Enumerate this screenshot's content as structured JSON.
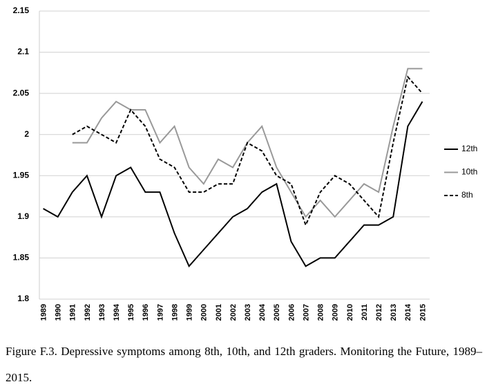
{
  "chart_data": {
    "type": "line",
    "caption": "Figure F.3. Depressive symptoms among 8th, 10th, and 12th graders. Monitoring the Future, 1989–2015.",
    "categories": [
      "1989",
      "1990",
      "1991",
      "1992",
      "1993",
      "1994",
      "1995",
      "1996",
      "1997",
      "1998",
      "1999",
      "2000",
      "2001",
      "2002",
      "2003",
      "2004",
      "2005",
      "2006",
      "2007",
      "2008",
      "2009",
      "2010",
      "2011",
      "2012",
      "2013",
      "2014",
      "2015"
    ],
    "series": [
      {
        "name": "12th",
        "color": "#000000",
        "dashed": false,
        "values": [
          1.91,
          1.9,
          1.93,
          1.95,
          1.9,
          1.95,
          1.96,
          1.93,
          1.93,
          1.88,
          1.84,
          1.86,
          1.88,
          1.9,
          1.91,
          1.93,
          1.94,
          1.87,
          1.84,
          1.85,
          1.85,
          1.87,
          1.89,
          1.89,
          1.9,
          2.01,
          2.04
        ]
      },
      {
        "name": "10th",
        "color": "#999999",
        "dashed": false,
        "values": [
          null,
          null,
          1.99,
          1.99,
          2.02,
          2.04,
          2.03,
          2.03,
          1.99,
          2.01,
          1.96,
          1.94,
          1.97,
          1.96,
          1.99,
          2.01,
          1.96,
          1.93,
          1.9,
          1.92,
          1.9,
          1.92,
          1.94,
          1.93,
          2.01,
          2.08,
          2.08
        ]
      },
      {
        "name": "8th",
        "color": "#000000",
        "dashed": true,
        "values": [
          null,
          null,
          2.0,
          2.01,
          2.0,
          1.99,
          2.03,
          2.01,
          1.97,
          1.96,
          1.93,
          1.93,
          1.94,
          1.94,
          1.99,
          1.98,
          1.95,
          1.94,
          1.89,
          1.93,
          1.95,
          1.94,
          1.92,
          1.9,
          1.99,
          2.07,
          2.05
        ]
      }
    ],
    "ylim": [
      1.8,
      2.15
    ],
    "yticks": [
      1.8,
      1.85,
      1.9,
      1.95,
      2,
      2.05,
      2.1,
      2.15
    ],
    "grid": true,
    "legend": "right"
  }
}
